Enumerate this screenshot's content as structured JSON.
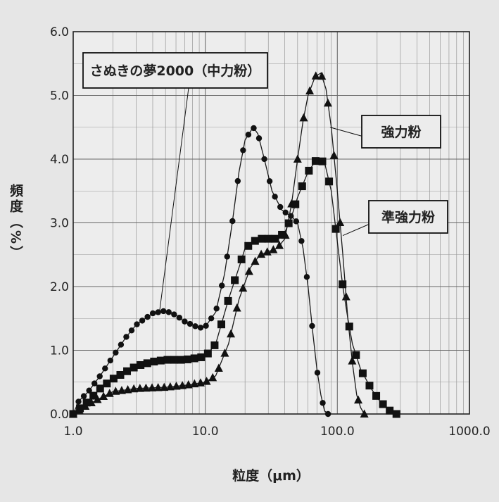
{
  "chart_data": {
    "type": "line",
    "xscale": "log",
    "xlim": [
      1.0,
      1000.0
    ],
    "ylim": [
      0.0,
      6.0
    ],
    "grid": true,
    "xlabel": "粒度（μm）",
    "ylabel": "頻度（%）",
    "x_ticks": [
      "1.0",
      "10.0",
      "100.0",
      "1000.0"
    ],
    "y_ticks": [
      "0.0",
      "1.0",
      "2.0",
      "3.0",
      "4.0",
      "5.0",
      "6.0"
    ],
    "series": [
      {
        "name": "さぬきの夢2000（中力粉）",
        "marker": "circle",
        "points": [
          [
            1.0,
            0.0
          ],
          [
            1.1,
            0.2
          ],
          [
            1.3,
            0.35
          ],
          [
            1.6,
            0.6
          ],
          [
            2.0,
            0.9
          ],
          [
            2.5,
            1.2
          ],
          [
            3.0,
            1.4
          ],
          [
            4.0,
            1.58
          ],
          [
            5.0,
            1.62
          ],
          [
            6.0,
            1.55
          ],
          [
            7.0,
            1.45
          ],
          [
            9.0,
            1.35
          ],
          [
            10.0,
            1.37
          ],
          [
            12.0,
            1.6
          ],
          [
            14.0,
            2.2
          ],
          [
            16.0,
            3.0
          ],
          [
            18.0,
            3.8
          ],
          [
            20.0,
            4.3
          ],
          [
            23.0,
            4.5
          ],
          [
            25.0,
            4.4
          ],
          [
            28.0,
            4.0
          ],
          [
            32.0,
            3.5
          ],
          [
            38.0,
            3.2
          ],
          [
            45.0,
            3.1
          ],
          [
            50.0,
            3.0
          ],
          [
            55.0,
            2.6
          ],
          [
            60.0,
            2.0
          ],
          [
            65.0,
            1.3
          ],
          [
            70.0,
            0.7
          ],
          [
            75.0,
            0.3
          ],
          [
            80.0,
            0.05
          ],
          [
            85.0,
            0.0
          ]
        ]
      },
      {
        "name": "強力粉",
        "marker": "triangle",
        "points": [
          [
            1.0,
            0.0
          ],
          [
            1.3,
            0.15
          ],
          [
            1.6,
            0.25
          ],
          [
            2.0,
            0.35
          ],
          [
            3.0,
            0.4
          ],
          [
            5.0,
            0.42
          ],
          [
            7.0,
            0.45
          ],
          [
            10.0,
            0.5
          ],
          [
            12.0,
            0.6
          ],
          [
            15.0,
            1.1
          ],
          [
            18.0,
            1.8
          ],
          [
            22.0,
            2.3
          ],
          [
            26.0,
            2.5
          ],
          [
            30.0,
            2.55
          ],
          [
            35.0,
            2.6
          ],
          [
            40.0,
            2.75
          ],
          [
            45.0,
            3.3
          ],
          [
            50.0,
            4.0
          ],
          [
            55.0,
            4.6
          ],
          [
            60.0,
            5.0
          ],
          [
            68.0,
            5.3
          ],
          [
            75.0,
            5.35
          ],
          [
            82.0,
            5.1
          ],
          [
            90.0,
            4.5
          ],
          [
            100.0,
            3.5
          ],
          [
            110.0,
            2.5
          ],
          [
            120.0,
            1.5
          ],
          [
            130.0,
            0.8
          ],
          [
            140.0,
            0.3
          ],
          [
            150.0,
            0.1
          ],
          [
            160.0,
            0.0
          ]
        ]
      },
      {
        "name": "準強力粉",
        "marker": "square",
        "points": [
          [
            1.0,
            0.0
          ],
          [
            1.3,
            0.2
          ],
          [
            1.6,
            0.4
          ],
          [
            2.0,
            0.55
          ],
          [
            3.0,
            0.75
          ],
          [
            4.0,
            0.82
          ],
          [
            5.0,
            0.85
          ],
          [
            7.0,
            0.85
          ],
          [
            10.0,
            0.9
          ],
          [
            12.0,
            1.1
          ],
          [
            15.0,
            1.8
          ],
          [
            18.0,
            2.3
          ],
          [
            20.0,
            2.6
          ],
          [
            25.0,
            2.75
          ],
          [
            30.0,
            2.75
          ],
          [
            35.0,
            2.75
          ],
          [
            40.0,
            2.85
          ],
          [
            45.0,
            3.1
          ],
          [
            50.0,
            3.4
          ],
          [
            60.0,
            3.8
          ],
          [
            70.0,
            4.0
          ],
          [
            80.0,
            3.95
          ],
          [
            90.0,
            3.5
          ],
          [
            100.0,
            2.7
          ],
          [
            110.0,
            2.0
          ],
          [
            120.0,
            1.5
          ],
          [
            130.0,
            1.1
          ],
          [
            150.0,
            0.7
          ],
          [
            180.0,
            0.4
          ],
          [
            210.0,
            0.2
          ],
          [
            250.0,
            0.05
          ],
          [
            280.0,
            0.0
          ]
        ]
      }
    ],
    "annotations": [
      {
        "text": "さぬきの夢2000（中力粉）",
        "series": 0,
        "anchor_x": 4.5,
        "anchor_y": 1.6
      },
      {
        "text": "強力粉",
        "series": 1,
        "anchor_x": 88.0,
        "anchor_y": 4.5
      },
      {
        "text": "準強力粉",
        "series": 2,
        "anchor_x": 110.0,
        "anchor_y": 2.8
      }
    ]
  }
}
